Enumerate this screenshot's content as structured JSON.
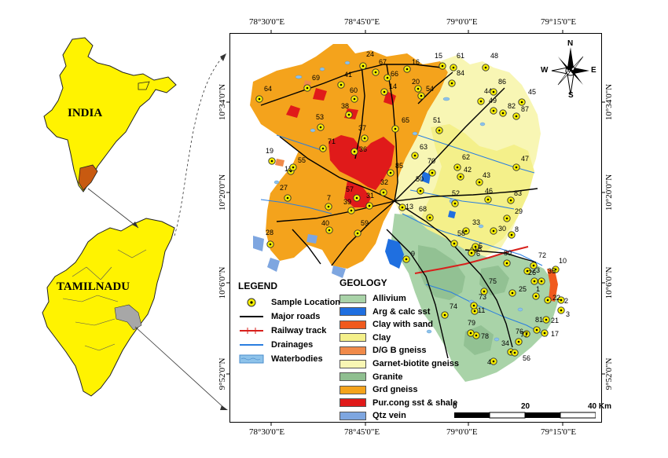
{
  "insets": {
    "india_label": "INDIA",
    "tamilnadu_label": "TAMILNADU"
  },
  "coords": {
    "top": [
      "78°30'0\"E",
      "78°45'0\"E",
      "79°0'0\"E",
      "79°15'0\"E"
    ],
    "bottom": [
      "78°30'0\"E",
      "78°45'0\"E",
      "79°0'0\"E",
      "79°15'0\"E"
    ],
    "left": [
      "10°34'0\"N",
      "10°20'0\"N",
      "10°6'0\"N",
      "9°52'0\"N"
    ],
    "right": [
      "10°34'0\"N",
      "10°20'0\"N",
      "10°6'0\"N",
      "9°52'0\"N"
    ]
  },
  "legend": {
    "title": "LEGEND",
    "items": [
      "Sample Location",
      "Major roads",
      "Railway track",
      "Drainages",
      "Waterbodies"
    ]
  },
  "geology": {
    "title": "GEOLOGY",
    "items": [
      {
        "label": "Allivium",
        "color": "#a9d3a8"
      },
      {
        "label": "Arg & calc sst",
        "color": "#1f6fe0"
      },
      {
        "label": "Clay with sand",
        "color": "#f05a1e"
      },
      {
        "label": "Clay",
        "color": "#f4f08a"
      },
      {
        "label": "D/G B gneiss",
        "color": "#f08a4a"
      },
      {
        "label": "Garnet-biotite gneiss",
        "color": "#f8f6b4"
      },
      {
        "label": "Granite",
        "color": "#8fbf90"
      },
      {
        "label": "Grd gneiss",
        "color": "#f4a31c"
      },
      {
        "label": "Pur.cong sst & shale",
        "color": "#e01a1a"
      },
      {
        "label": "Qtz vein",
        "color": "#7ea6e0"
      }
    ]
  },
  "scale": {
    "labels": [
      "0",
      "20",
      "40 Km"
    ]
  },
  "compass": {
    "n": "N",
    "s": "S",
    "e": "E",
    "w": "W"
  },
  "samples": [
    {
      "id": "1"
    },
    {
      "id": "2"
    },
    {
      "id": "3"
    },
    {
      "id": "4"
    },
    {
      "id": "5"
    },
    {
      "id": "6"
    },
    {
      "id": "7"
    },
    {
      "id": "8"
    },
    {
      "id": "9"
    },
    {
      "id": "10"
    },
    {
      "id": "11"
    },
    {
      "id": "12"
    },
    {
      "id": "13"
    },
    {
      "id": "14"
    },
    {
      "id": "15"
    },
    {
      "id": "16"
    },
    {
      "id": "17"
    },
    {
      "id": "18"
    },
    {
      "id": "19"
    },
    {
      "id": "20"
    },
    {
      "id": "21"
    },
    {
      "id": "22"
    },
    {
      "id": "23"
    },
    {
      "id": "24"
    },
    {
      "id": "25"
    },
    {
      "id": "26"
    },
    {
      "id": "27"
    },
    {
      "id": "28"
    },
    {
      "id": "29"
    },
    {
      "id": "30"
    },
    {
      "id": "31"
    },
    {
      "id": "32"
    },
    {
      "id": "33"
    },
    {
      "id": "34"
    },
    {
      "id": "35"
    },
    {
      "id": "36"
    },
    {
      "id": "37"
    },
    {
      "id": "38"
    },
    {
      "id": "39"
    },
    {
      "id": "40"
    },
    {
      "id": "41"
    },
    {
      "id": "42"
    },
    {
      "id": "43"
    },
    {
      "id": "44"
    },
    {
      "id": "45"
    },
    {
      "id": "46"
    },
    {
      "id": "47"
    },
    {
      "id": "48"
    },
    {
      "id": "49"
    },
    {
      "id": "50"
    },
    {
      "id": "51"
    },
    {
      "id": "52"
    },
    {
      "id": "53"
    },
    {
      "id": "54"
    },
    {
      "id": "55"
    },
    {
      "id": "56"
    },
    {
      "id": "57"
    },
    {
      "id": "58"
    },
    {
      "id": "59"
    },
    {
      "id": "60"
    },
    {
      "id": "61"
    },
    {
      "id": "62"
    },
    {
      "id": "63"
    },
    {
      "id": "64"
    },
    {
      "id": "65"
    },
    {
      "id": "66"
    },
    {
      "id": "67"
    },
    {
      "id": "68"
    },
    {
      "id": "69"
    },
    {
      "id": "70"
    },
    {
      "id": "71"
    },
    {
      "id": "72"
    },
    {
      "id": "73"
    },
    {
      "id": "74"
    },
    {
      "id": "75"
    },
    {
      "id": "76"
    },
    {
      "id": "77"
    },
    {
      "id": "78"
    },
    {
      "id": "79"
    },
    {
      "id": "80"
    },
    {
      "id": "81"
    },
    {
      "id": "82"
    },
    {
      "id": "83"
    },
    {
      "id": "84"
    },
    {
      "id": "85"
    },
    {
      "id": "86"
    },
    {
      "id": "87"
    }
  ]
}
